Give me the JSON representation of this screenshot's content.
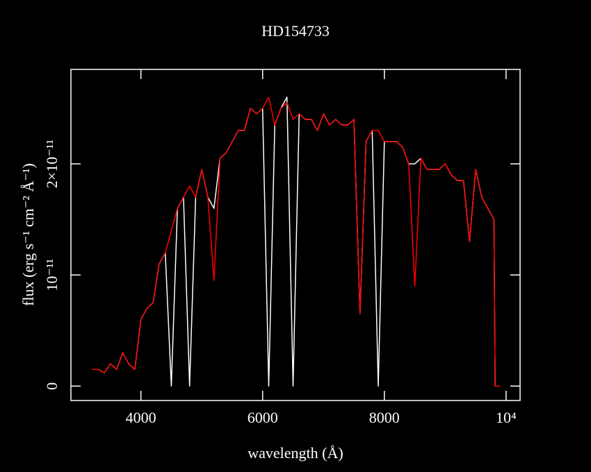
{
  "chart_data": {
    "type": "line",
    "title": "HD154733",
    "xlabel": "wavelength (Å)",
    "ylabel": "flux (erg s⁻¹ cm⁻² Å⁻¹)",
    "x": [
      3200,
      3300,
      3400,
      3500,
      3600,
      3700,
      3800,
      3900,
      4000,
      4100,
      4200,
      4300,
      4400,
      4500,
      4600,
      4700,
      4800,
      4900,
      5000,
      5100,
      5200,
      5300,
      5400,
      5500,
      5600,
      5700,
      5800,
      5900,
      6000,
      6100,
      6200,
      6300,
      6400,
      6500,
      6600,
      6700,
      6800,
      6900,
      7000,
      7100,
      7200,
      7300,
      7400,
      7500,
      7600,
      7700,
      7800,
      7900,
      8000,
      8100,
      8200,
      8300,
      8400,
      8500,
      8600,
      8700,
      8800,
      8900,
      9000,
      9100,
      9200,
      9300,
      9400,
      9500,
      9600,
      9700,
      9800,
      9820,
      9900
    ],
    "series": [
      {
        "name": "white",
        "color": "#ffffff",
        "values": [
          1.5e-12,
          1.5e-12,
          1.2e-12,
          2e-12,
          1.5e-12,
          3e-12,
          2e-12,
          1.5e-12,
          6e-12,
          7e-12,
          7.5e-12,
          1.1e-11,
          1.2e-11,
          0,
          1.6e-11,
          1.7e-11,
          0,
          1.7e-11,
          1.95e-11,
          1.7e-11,
          1.6e-11,
          2.05e-11,
          2.1e-11,
          2.2e-11,
          2.3e-11,
          2.3e-11,
          2.5e-11,
          2.45e-11,
          2.5e-11,
          0,
          2.35e-11,
          2.5e-11,
          2.6e-11,
          0,
          2.45e-11,
          2.4e-11,
          2.4e-11,
          2.3e-11,
          2.45e-11,
          2.35e-11,
          2.4e-11,
          2.35e-11,
          2.35e-11,
          2.4e-11,
          6.5e-12,
          2.2e-11,
          2.3e-11,
          0,
          2.2e-11,
          2.2e-11,
          2.2e-11,
          2.15e-11,
          2e-11,
          2e-11,
          2.05e-11,
          1.95e-11,
          1.95e-11,
          1.95e-11,
          2e-11,
          1.9e-11,
          1.85e-11,
          1.85e-11,
          1.3e-11,
          1.95e-11,
          1.7e-11,
          1.6e-11,
          1.5e-11,
          0,
          0
        ]
      },
      {
        "name": "red",
        "color": "#ff0000",
        "values": [
          1.5e-12,
          1.5e-12,
          1.2e-12,
          2e-12,
          1.5e-12,
          3e-12,
          2e-12,
          1.5e-12,
          6e-12,
          7e-12,
          7.5e-12,
          1.1e-11,
          1.2e-11,
          1.4e-11,
          1.6e-11,
          1.7e-11,
          1.8e-11,
          1.7e-11,
          1.95e-11,
          1.7e-11,
          9.5e-12,
          2.05e-11,
          2.1e-11,
          2.2e-11,
          2.3e-11,
          2.3e-11,
          2.5e-11,
          2.45e-11,
          2.5e-11,
          2.6e-11,
          2.35e-11,
          2.5e-11,
          2.55e-11,
          2.4e-11,
          2.45e-11,
          2.4e-11,
          2.4e-11,
          2.3e-11,
          2.45e-11,
          2.35e-11,
          2.4e-11,
          2.35e-11,
          2.35e-11,
          2.4e-11,
          6.5e-12,
          2.2e-11,
          2.3e-11,
          2.3e-11,
          2.2e-11,
          2.2e-11,
          2.2e-11,
          2.15e-11,
          2e-11,
          9e-12,
          2.05e-11,
          1.95e-11,
          1.95e-11,
          1.95e-11,
          2e-11,
          1.9e-11,
          1.85e-11,
          1.85e-11,
          1.3e-11,
          1.95e-11,
          1.7e-11,
          1.6e-11,
          1.5e-11,
          0,
          0
        ]
      }
    ],
    "xlim": [
      2850,
      10230
    ],
    "ylim": [
      -1.3e-12,
      2.85e-11
    ],
    "xticks": [
      4000,
      6000,
      8000,
      {
        "value": 10000,
        "label": "10⁴"
      }
    ],
    "yticks": [
      0,
      {
        "value": 1e-11,
        "label": "10⁻¹¹"
      },
      {
        "value": 2e-11,
        "label": "2×10⁻¹¹"
      }
    ]
  }
}
